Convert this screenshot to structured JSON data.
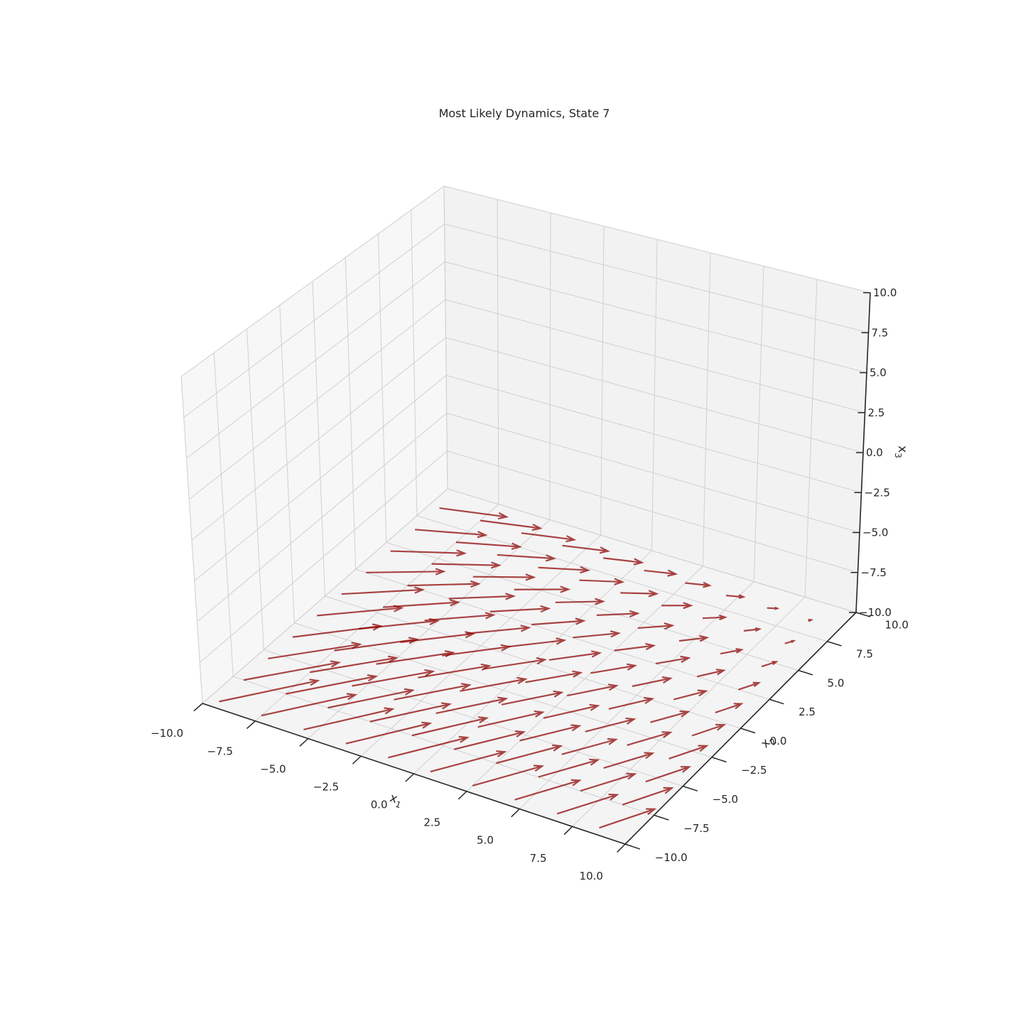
{
  "chart_data": {
    "type": "quiver3d",
    "title": "Most Likely Dynamics, State 7",
    "xlabel": "x",
    "xlabel_sub": "1",
    "ylabel": "x",
    "ylabel_sub": "2",
    "zlabel": "x",
    "zlabel_sub": "3",
    "xlim": [
      -10,
      10
    ],
    "ylim": [
      -10,
      10
    ],
    "zlim": [
      -10,
      10
    ],
    "x_ticks": [
      "−10.0",
      "−7.5",
      "−5.0",
      "−2.5",
      "0.0",
      "2.5",
      "5.0",
      "7.5",
      "10.0"
    ],
    "y_ticks": [
      "−10.0",
      "−7.5",
      "−5.0",
      "−2.5",
      "0.0",
      "2.5",
      "5.0",
      "7.5",
      "10.0"
    ],
    "z_ticks": [
      "−10.0",
      "−7.5",
      "−5.0",
      "−2.5",
      "0.0",
      "2.5",
      "5.0",
      "7.5",
      "10.0"
    ],
    "grid": true,
    "pane_color": "#f2f2f2",
    "grid_color": "#d0d0d0",
    "arrow_color": "#8b0000",
    "arrow_alpha": 0.72,
    "field": {
      "x_range": [
        -9.5,
        8.5
      ],
      "y_range": [
        -9.5,
        8.5
      ],
      "grid_n": 10,
      "z": -10,
      "approx_vectors": [
        {
          "x": -9.5,
          "y": -9.5,
          "dx": 2.6,
          "dy": 3.6
        },
        {
          "x": 8.5,
          "y": -9.5,
          "dx": 1.3,
          "dy": 2.4
        },
        {
          "x": -9.5,
          "y": 8.5,
          "dx": 2.8,
          "dy": 0.8
        },
        {
          "x": 8.5,
          "y": 8.5,
          "dx": 0.1,
          "dy": 0.1
        }
      ]
    }
  }
}
